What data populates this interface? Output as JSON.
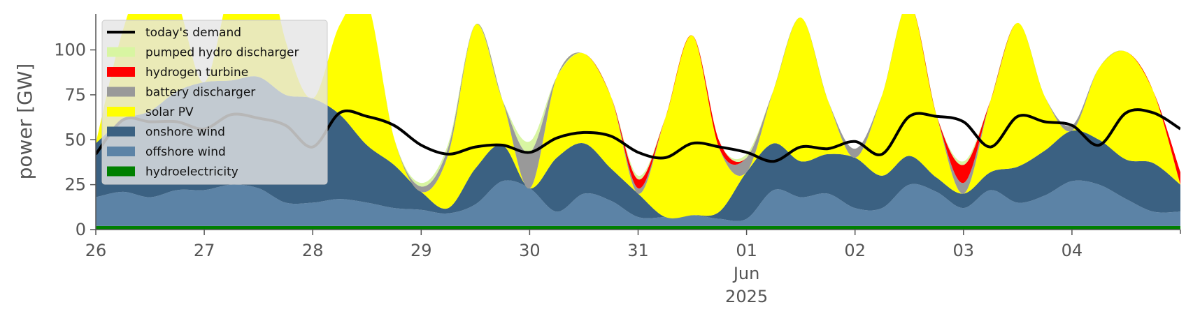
{
  "chart_data": {
    "type": "area",
    "ylabel": "power [GW]",
    "ylim": [
      0,
      120
    ],
    "yticks": [
      0,
      25,
      50,
      75,
      100
    ],
    "x_range": [
      "2025-05-26T00:00",
      "2025-06-05T00:00"
    ],
    "xticks": [
      {
        "date": "2025-05-26",
        "label": "26"
      },
      {
        "date": "2025-05-27",
        "label": "27"
      },
      {
        "date": "2025-05-28",
        "label": "28"
      },
      {
        "date": "2025-05-29",
        "label": "29"
      },
      {
        "date": "2025-05-30",
        "label": "30"
      },
      {
        "date": "2025-05-31",
        "label": "31"
      },
      {
        "date": "2025-06-01",
        "label": "01",
        "sub1": "Jun",
        "sub2": "2025"
      },
      {
        "date": "2025-06-02",
        "label": "02"
      },
      {
        "date": "2025-06-03",
        "label": "03"
      },
      {
        "date": "2025-06-04",
        "label": "04"
      }
    ],
    "grid": false,
    "legend_position": "top-left",
    "legend": [
      {
        "label": "today's demand",
        "kind": "line",
        "color": "#000000"
      },
      {
        "label": "pumped hydro discharger",
        "kind": "patch",
        "color": "#d8f5a2"
      },
      {
        "label": "hydrogen turbine",
        "kind": "patch",
        "color": "#ff0000"
      },
      {
        "label": "battery discharger",
        "kind": "patch",
        "color": "#999999"
      },
      {
        "label": "solar PV",
        "kind": "patch",
        "color": "#ffff00"
      },
      {
        "label": "onshore wind",
        "kind": "patch",
        "color": "#3b6182"
      },
      {
        "label": "offshore wind",
        "kind": "patch",
        "color": "#5c83a6"
      },
      {
        "label": "hydroelectricity",
        "kind": "patch",
        "color": "#008000"
      }
    ],
    "x_days": [
      0,
      0.25,
      0.5,
      0.75,
      1,
      1.25,
      1.5,
      1.75,
      2,
      2.25,
      2.5,
      2.75,
      3,
      3.25,
      3.5,
      3.75,
      4,
      4.25,
      4.5,
      4.75,
      5,
      5.25,
      5.5,
      5.75,
      6,
      6.25,
      6.5,
      6.75,
      7,
      7.25,
      7.5,
      7.75,
      8,
      8.25,
      8.5,
      8.75,
      9,
      9.25,
      9.5,
      9.75,
      10
    ],
    "series": [
      {
        "name": "hydroelectricity",
        "color": "#008000",
        "values": [
          2,
          2,
          2,
          2,
          2,
          2,
          2,
          2,
          2,
          2,
          2,
          2,
          2,
          2,
          2,
          2,
          2,
          2,
          2,
          2,
          2,
          2,
          2,
          2,
          2,
          2,
          2,
          2,
          2,
          2,
          2,
          2,
          2,
          2,
          2,
          2,
          2,
          2,
          2,
          2,
          2
        ]
      },
      {
        "name": "offshore wind",
        "color": "#5c83a6",
        "values": [
          16,
          19,
          16,
          20,
          20,
          23,
          21,
          13,
          13,
          15,
          13,
          10,
          9,
          7,
          12,
          25,
          21,
          8,
          18,
          14,
          5,
          5,
          6,
          4,
          4,
          20,
          16,
          18,
          10,
          10,
          23,
          19,
          10,
          20,
          13,
          17,
          25,
          23,
          15,
          8,
          8
        ]
      },
      {
        "name": "onshore wind",
        "color": "#3b6182",
        "values": [
          30,
          40,
          48,
          55,
          60,
          58,
          62,
          60,
          58,
          47,
          32,
          24,
          10,
          3,
          20,
          20,
          0,
          30,
          28,
          18,
          13,
          0,
          0,
          4,
          26,
          26,
          20,
          22,
          28,
          18,
          16,
          8,
          8,
          10,
          20,
          25,
          28,
          25,
          22,
          27,
          15
        ]
      },
      {
        "name": "solar PV",
        "color": "#ffff00",
        "values": [
          0,
          50,
          80,
          50,
          0,
          55,
          85,
          30,
          0,
          50,
          80,
          15,
          0,
          30,
          80,
          25,
          0,
          45,
          50,
          40,
          0,
          55,
          100,
          35,
          0,
          30,
          80,
          30,
          0,
          45,
          85,
          35,
          0,
          40,
          80,
          30,
          0,
          40,
          60,
          40,
          0
        ]
      },
      {
        "name": "battery discharger",
        "color": "#999999",
        "values": [
          0,
          0,
          0,
          0,
          0,
          0,
          0,
          0,
          0,
          0,
          0,
          0,
          3,
          4,
          0,
          0,
          20,
          0,
          0,
          0,
          3,
          0,
          0,
          0,
          8,
          0,
          0,
          0,
          5,
          0,
          0,
          0,
          6,
          0,
          0,
          0,
          3,
          0,
          0,
          0,
          0
        ]
      },
      {
        "name": "hydrogen turbine",
        "color": "#ff0000",
        "values": [
          0,
          0,
          0,
          0,
          0,
          0,
          0,
          0,
          0,
          0,
          0,
          0,
          0,
          0,
          0,
          0,
          0,
          0,
          0,
          0,
          5,
          0,
          0,
          4,
          0,
          0,
          0,
          0,
          0,
          0,
          0,
          0,
          10,
          0,
          0,
          0,
          0,
          0,
          0,
          0,
          7
        ]
      },
      {
        "name": "pumped hydro discharger",
        "color": "#d8f5a2",
        "values": [
          0,
          0,
          0,
          0,
          0,
          0,
          0,
          0,
          0,
          0,
          0,
          0,
          2,
          2,
          0,
          0,
          6,
          0,
          0,
          0,
          2,
          0,
          0,
          0,
          2,
          0,
          0,
          0,
          0,
          0,
          0,
          0,
          2,
          0,
          0,
          0,
          0,
          0,
          0,
          0,
          0
        ]
      }
    ],
    "demand": {
      "name": "today's demand",
      "color": "#000000",
      "values": [
        42,
        61,
        60,
        60,
        56,
        64,
        62,
        58,
        46,
        65,
        63,
        58,
        47,
        42,
        46,
        47,
        43,
        51,
        54,
        52,
        43,
        40,
        48,
        46,
        43,
        38,
        46,
        45,
        49,
        42,
        63,
        63,
        60,
        46,
        63,
        60,
        58,
        47,
        65,
        65,
        56
      ]
    }
  }
}
